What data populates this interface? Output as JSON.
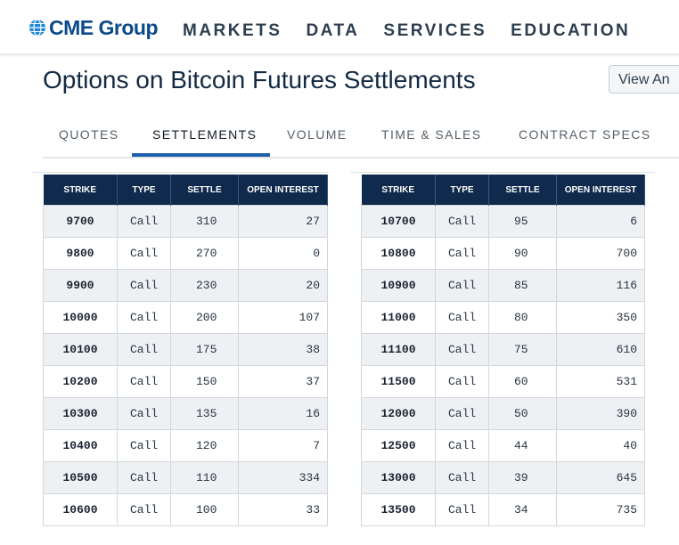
{
  "header": {
    "logo_text": "CME Group",
    "nav": [
      "MARKETS",
      "DATA",
      "SERVICES",
      "EDUCATION"
    ]
  },
  "page": {
    "title": "Options on Bitcoin Futures Settlements",
    "view_button": "View An"
  },
  "tabs": [
    "QUOTES",
    "SETTLEMENTS",
    "VOLUME",
    "TIME & SALES",
    "CONTRACT SPECS"
  ],
  "active_tab": "SETTLEMENTS",
  "columns": [
    "STRIKE",
    "TYPE",
    "SETTLE",
    "OPEN INTEREST"
  ],
  "left_table": [
    {
      "strike": "9700",
      "type": "Call",
      "settle": "310",
      "oi": "27"
    },
    {
      "strike": "9800",
      "type": "Call",
      "settle": "270",
      "oi": "0"
    },
    {
      "strike": "9900",
      "type": "Call",
      "settle": "230",
      "oi": "20"
    },
    {
      "strike": "10000",
      "type": "Call",
      "settle": "200",
      "oi": "107"
    },
    {
      "strike": "10100",
      "type": "Call",
      "settle": "175",
      "oi": "38"
    },
    {
      "strike": "10200",
      "type": "Call",
      "settle": "150",
      "oi": "37"
    },
    {
      "strike": "10300",
      "type": "Call",
      "settle": "135",
      "oi": "16"
    },
    {
      "strike": "10400",
      "type": "Call",
      "settle": "120",
      "oi": "7"
    },
    {
      "strike": "10500",
      "type": "Call",
      "settle": "110",
      "oi": "334"
    },
    {
      "strike": "10600",
      "type": "Call",
      "settle": "100",
      "oi": "33"
    }
  ],
  "right_table": [
    {
      "strike": "10700",
      "type": "Call",
      "settle": "95",
      "oi": "6"
    },
    {
      "strike": "10800",
      "type": "Call",
      "settle": "90",
      "oi": "700"
    },
    {
      "strike": "10900",
      "type": "Call",
      "settle": "85",
      "oi": "116"
    },
    {
      "strike": "11000",
      "type": "Call",
      "settle": "80",
      "oi": "350"
    },
    {
      "strike": "11100",
      "type": "Call",
      "settle": "75",
      "oi": "610"
    },
    {
      "strike": "11500",
      "type": "Call",
      "settle": "60",
      "oi": "531"
    },
    {
      "strike": "12000",
      "type": "Call",
      "settle": "50",
      "oi": "390"
    },
    {
      "strike": "12500",
      "type": "Call",
      "settle": "44",
      "oi": "40"
    },
    {
      "strike": "13000",
      "type": "Call",
      "settle": "39",
      "oi": "645"
    },
    {
      "strike": "13500",
      "type": "Call",
      "settle": "34",
      "oi": "735"
    }
  ],
  "colors": {
    "header_bg": "#0f2a4d",
    "accent": "#1d5fa8",
    "logo": "#0c4a8a",
    "row_alt": "#eef1f4"
  }
}
